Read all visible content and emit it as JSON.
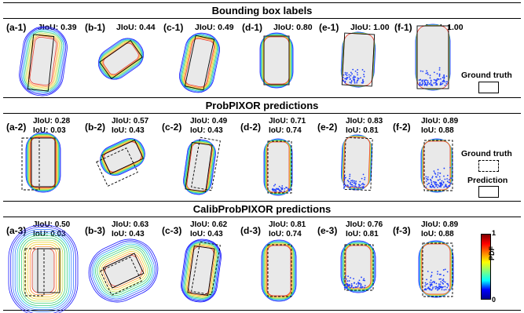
{
  "sections": [
    {
      "title": "Bounding box labels",
      "panels": [
        {
          "label": "(a-1)",
          "jiou": "JIoU: 0.39"
        },
        {
          "label": "(b-1)",
          "jiou": "JIoU: 0.44"
        },
        {
          "label": "(c-1)",
          "jiou": "JIoU: 0.49"
        },
        {
          "label": "(d-1)",
          "jiou": "JIoU: 0.80"
        },
        {
          "label": "(e-1)",
          "jiou": "JIoU: 1.00"
        },
        {
          "label": "(f-1)",
          "jiou": "JIoU: 1.00"
        }
      ]
    },
    {
      "title": "ProbPIXOR predictions",
      "panels": [
        {
          "label": "(a-2)",
          "jiou": "JIoU: 0.28",
          "iou": "IoU:  0.03"
        },
        {
          "label": "(b-2)",
          "jiou": "JIoU: 0.57",
          "iou": "IoU:  0.43"
        },
        {
          "label": "(c-2)",
          "jiou": "JIoU: 0.49",
          "iou": "IoU:  0.43"
        },
        {
          "label": "(d-2)",
          "jiou": "JIoU: 0.71",
          "iou": "IoU:  0.74"
        },
        {
          "label": "(e-2)",
          "jiou": "JIoU: 0.83",
          "iou": "IoU:  0.81"
        },
        {
          "label": "(f-2)",
          "jiou": "JIoU: 0.89",
          "iou": "IoU:  0.88"
        }
      ]
    },
    {
      "title": "CalibProbPIXOR predictions",
      "panels": [
        {
          "label": "(a-3)",
          "jiou": "JIoU: 0.50",
          "iou": "IoU:  0.03"
        },
        {
          "label": "(b-3)",
          "jiou": "JIoU: 0.63",
          "iou": "IoU:  0.43"
        },
        {
          "label": "(c-3)",
          "jiou": "JIoU: 0.62",
          "iou": "IoU:  0.43"
        },
        {
          "label": "(d-3)",
          "jiou": "JIoU: 0.81",
          "iou": "IoU:  0.74"
        },
        {
          "label": "(e-3)",
          "jiou": "JIoU: 0.76",
          "iou": "IoU:  0.81"
        },
        {
          "label": "(f-3)",
          "jiou": "JIoU: 0.89",
          "iou": "IoU:  0.88"
        }
      ]
    }
  ],
  "legend": {
    "ground_truth": "Ground truth",
    "prediction": "Prediction"
  },
  "colorbar": {
    "label": "PDF",
    "max": "1",
    "min": "0",
    "colors": [
      "#00008f",
      "#0000ff",
      "#00ffff",
      "#7fff7f",
      "#ffff00",
      "#ff7f00",
      "#ff0000",
      "#7f0000"
    ]
  }
}
